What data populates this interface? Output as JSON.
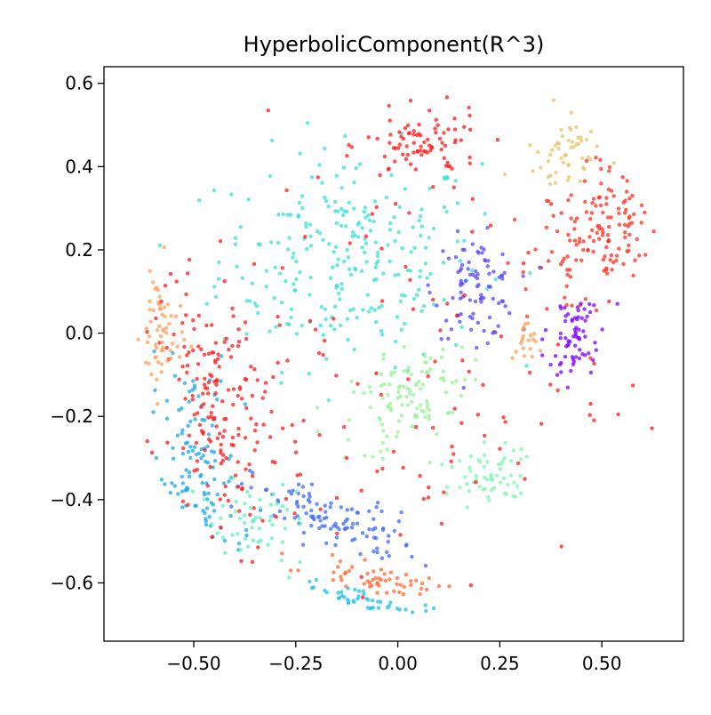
{
  "chart_data": {
    "type": "scatter",
    "title": "HyperbolicComponent(R^3)",
    "xlabel": "",
    "ylabel": "",
    "xlim": [
      -0.72,
      0.7
    ],
    "ylim": [
      -0.74,
      0.64
    ],
    "xticks": [
      -0.5,
      -0.25,
      0.0,
      0.25,
      0.5
    ],
    "xtick_labels": [
      "−0.50",
      "−0.25",
      "0.00",
      "0.25",
      "0.50"
    ],
    "yticks": [
      -0.6,
      -0.4,
      -0.2,
      0.0,
      0.2,
      0.4,
      0.6
    ],
    "ytick_labels": [
      "−0.6",
      "−0.4",
      "−0.2",
      "0.0",
      "0.2",
      "0.4",
      "0.6"
    ],
    "grid": false,
    "legend": "none",
    "clusters": [
      {
        "color": "#3ae0d8",
        "center": [
          -0.12,
          0.18
        ],
        "spread": [
          0.16,
          0.13
        ],
        "angle": 0,
        "n": 260
      },
      {
        "color": "#ff2f1f",
        "center": [
          0.49,
          0.24
        ],
        "spread": [
          0.07,
          0.1
        ],
        "angle": -35,
        "n": 160
      },
      {
        "color": "#e8c46c",
        "center": [
          0.43,
          0.44
        ],
        "spread": [
          0.04,
          0.06
        ],
        "angle": -40,
        "n": 60
      },
      {
        "color": "#5a49f5",
        "center": [
          0.19,
          0.11
        ],
        "spread": [
          0.05,
          0.06
        ],
        "angle": 0,
        "n": 90
      },
      {
        "color": "#8000ff",
        "center": [
          0.43,
          -0.02
        ],
        "spread": [
          0.035,
          0.06
        ],
        "angle": -20,
        "n": 70
      },
      {
        "color": "#9af29a",
        "center": [
          0.02,
          -0.15
        ],
        "spread": [
          0.08,
          0.06
        ],
        "angle": 25,
        "n": 110
      },
      {
        "color": "#80f5b0",
        "center": [
          0.21,
          -0.35
        ],
        "spread": [
          0.05,
          0.035
        ],
        "angle": 20,
        "n": 60
      },
      {
        "color": "#3f6bf2",
        "center": [
          -0.16,
          -0.45
        ],
        "spread": [
          0.11,
          0.035
        ],
        "angle": -18,
        "n": 110
      },
      {
        "color": "#1aa8eb",
        "center": [
          -0.49,
          -0.35
        ],
        "spread": [
          0.05,
          0.14
        ],
        "angle": 5,
        "n": 140
      },
      {
        "color": "#ff1a1a",
        "center": [
          -0.43,
          -0.2
        ],
        "spread": [
          0.06,
          0.16
        ],
        "angle": 10,
        "n": 170
      },
      {
        "color": "#ff1a1a",
        "center": [
          0.06,
          0.45
        ],
        "spread": [
          0.07,
          0.04
        ],
        "angle": 0,
        "n": 80
      },
      {
        "color": "#ffa059",
        "center": [
          -0.58,
          0.0
        ],
        "spread": [
          0.025,
          0.08
        ],
        "angle": 0,
        "n": 60
      },
      {
        "color": "#ff6a30",
        "center": [
          -0.05,
          -0.59
        ],
        "spread": [
          0.08,
          0.015
        ],
        "angle": -10,
        "n": 55
      },
      {
        "color": "#22c0e8",
        "center": [
          -0.08,
          -0.64
        ],
        "spread": [
          0.08,
          0.012
        ],
        "angle": -12,
        "n": 45
      },
      {
        "color": "#60f0c0",
        "center": [
          -0.38,
          -0.45
        ],
        "spread": [
          0.06,
          0.06
        ],
        "angle": -30,
        "n": 60
      },
      {
        "color": "#ffa059",
        "center": [
          0.31,
          -0.03
        ],
        "spread": [
          0.015,
          0.03
        ],
        "angle": 0,
        "n": 20
      },
      {
        "color": "#ff1a1a",
        "center": [
          -0.05,
          -0.1
        ],
        "spread": [
          0.3,
          0.3
        ],
        "angle": 0,
        "n": 140
      }
    ]
  }
}
